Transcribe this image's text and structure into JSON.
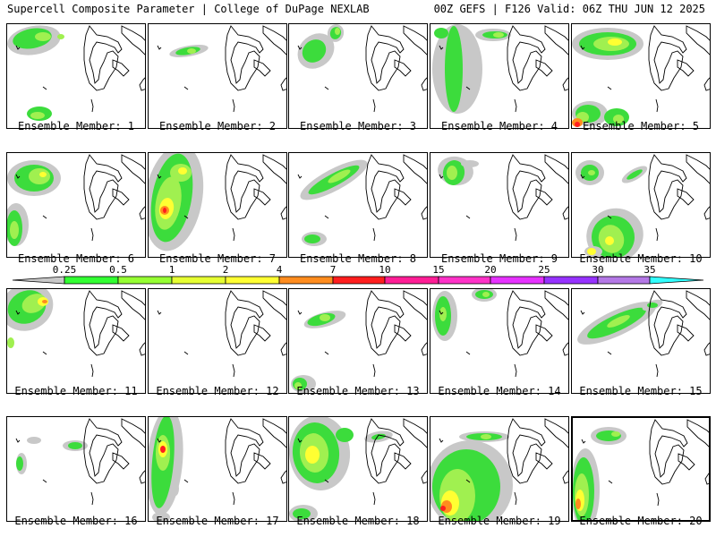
{
  "header": {
    "left": "Supercell Composite Parameter | College of DuPage NEXLAB",
    "right": "00Z GEFS | F126 Valid: 06Z THU JUN 12 2025"
  },
  "colorbar": {
    "labels": [
      "0.25",
      "0.5",
      "1",
      "2",
      "4",
      "7",
      "10",
      "15",
      "20",
      "25",
      "30",
      "35"
    ],
    "colors": [
      "#c8c8c8",
      "#32ff32",
      "#96ff32",
      "#e6ff32",
      "#ffff32",
      "#ff8c1e",
      "#ff1e1e",
      "#ff1e96",
      "#ff32c8",
      "#e632ff",
      "#9632ff",
      "#b478e6",
      "#32ffff"
    ]
  },
  "palette": {
    "gray": "#c8c8c8",
    "green": "#3cdc3c",
    "lime": "#a0f050",
    "yellow": "#ffff32",
    "orange": "#ff8c1e",
    "red": "#ff1e1e"
  },
  "members": [
    {
      "caption": "Ensemble Member: 1"
    },
    {
      "caption": "Ensemble Member: 2"
    },
    {
      "caption": "Ensemble Member: 3"
    },
    {
      "caption": "Ensemble Member: 4"
    },
    {
      "caption": "Ensemble Member: 5"
    },
    {
      "caption": "Ensemble Member: 6"
    },
    {
      "caption": "Ensemble Member: 7"
    },
    {
      "caption": "Ensemble Member: 8"
    },
    {
      "caption": "Ensemble Member: 9"
    },
    {
      "caption": "Ensemble Member: 10"
    },
    {
      "caption": "Ensemble Member: 11"
    },
    {
      "caption": "Ensemble Member: 12"
    },
    {
      "caption": "Ensemble Member: 13"
    },
    {
      "caption": "Ensemble Member: 14"
    },
    {
      "caption": "Ensemble Member: 15"
    },
    {
      "caption": "Ensemble Member: 16"
    },
    {
      "caption": "Ensemble Member: 17"
    },
    {
      "caption": "Ensemble Member: 18"
    },
    {
      "caption": "Ensemble Member: 19"
    },
    {
      "caption": "Ensemble Member: 20"
    }
  ]
}
